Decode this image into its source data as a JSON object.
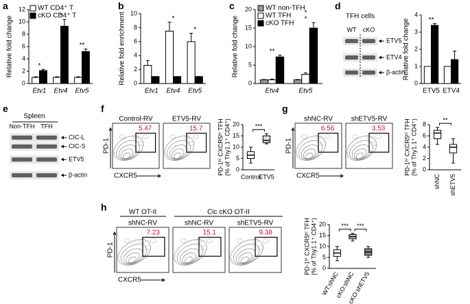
{
  "chart_data": [
    {
      "panel": "a",
      "type": "bar",
      "ylabel": "Relative fold change",
      "categories": [
        "Etv1",
        "Etv4",
        "Etv5"
      ],
      "series": [
        {
          "name": "WT CD4⁺ T",
          "color": "#ffffff",
          "values": [
            1,
            1,
            1
          ],
          "errors": [
            0.1,
            0.1,
            0.1
          ]
        },
        {
          "name": "cKO CD4⁺ T",
          "color": "#000000",
          "values": [
            2.1,
            9.3,
            5.2
          ],
          "errors": [
            0.2,
            1.1,
            0.4
          ]
        }
      ],
      "ylim": [
        0,
        12
      ],
      "yticks": [
        0,
        2,
        4,
        6,
        8,
        10,
        12
      ],
      "annotations": [
        [
          "*"
        ],
        [
          "*"
        ],
        [
          "**"
        ]
      ]
    },
    {
      "panel": "b",
      "type": "bar",
      "ylabel": "Relative fold enrichment",
      "categories": [
        "Etv1",
        "Etv4",
        "Etv5"
      ],
      "series": [
        {
          "color": "#ffffff",
          "values": [
            2.6,
            7.5,
            6
          ],
          "errors": [
            0.7,
            1.3,
            1.2
          ]
        },
        {
          "color": "#000000",
          "values": [
            1,
            1,
            1
          ],
          "errors": [
            0,
            0,
            0
          ]
        }
      ],
      "ylim": [
        0,
        10
      ],
      "yticks": [
        0,
        2,
        4,
        6,
        8,
        10
      ],
      "annotations": [
        [],
        [
          "*"
        ],
        [
          "*"
        ]
      ]
    },
    {
      "panel": "c",
      "type": "bar",
      "ylabel": "Relative fold change",
      "categories": [
        "Etv4",
        "Etv5"
      ],
      "series": [
        {
          "name": "WT non-TFH",
          "color": "#999999",
          "values": [
            1,
            1
          ],
          "errors": [
            0.1,
            0.1
          ]
        },
        {
          "name": "WT TFH",
          "color": "#ffffff",
          "values": [
            1,
            2.5
          ],
          "errors": [
            0.2,
            0.4
          ]
        },
        {
          "name": "cKO TFH",
          "color": "#000000",
          "values": [
            7.2,
            15
          ],
          "errors": [
            0.5,
            1.5
          ]
        }
      ],
      "ylim": [
        0,
        20
      ],
      "yticks": [
        0,
        5,
        10,
        15,
        20
      ],
      "annotations": [
        [
          "**"
        ],
        [
          "*",
          "*"
        ]
      ]
    },
    {
      "panel": "d",
      "type": "bar",
      "ylabel": "Relative fold change",
      "categories": [
        "ETV5",
        "ETV4"
      ],
      "series": [
        {
          "color": "#ffffff",
          "values": [
            1,
            1
          ],
          "errors": [
            0,
            0
          ]
        },
        {
          "color": "#000000",
          "values": [
            3.4,
            1.4
          ],
          "errors": [
            0.1,
            0.5
          ]
        }
      ],
      "ylim": [
        0,
        4
      ],
      "yticks": [
        0,
        1,
        2,
        3,
        4
      ],
      "annotations": [
        [
          "**"
        ],
        []
      ]
    },
    {
      "panel": "f",
      "type": "box",
      "ylabel": [
        "PD-1ʰⁱ CXCR5ʰⁱ TFH",
        "(% of Thy1.1⁺ CD4⁺)"
      ],
      "categories": [
        "Control",
        "ETV5"
      ],
      "boxes": [
        {
          "min": 3,
          "q1": 5,
          "median": 6.5,
          "q3": 8,
          "max": 10
        },
        {
          "min": 11.5,
          "q1": 12,
          "median": 13,
          "q3": 15,
          "max": 16
        }
      ],
      "colors": [
        "#ffffff",
        "#dddddd"
      ],
      "ylim": [
        0,
        20
      ],
      "yticks": [
        0,
        5,
        10,
        15,
        20
      ],
      "annotations": [
        "***"
      ]
    },
    {
      "panel": "g",
      "type": "box",
      "ylabel": [
        "PD-1ʰⁱ CXCR5ʰⁱ TFH",
        "(% of Thy1.1⁺ CD4⁺)"
      ],
      "categories": [
        "shNC",
        "shETV5"
      ],
      "boxes": [
        {
          "min": 4.5,
          "q1": 5.5,
          "median": 6.5,
          "q3": 7,
          "max": 7.5
        },
        {
          "min": 1.2,
          "q1": 3,
          "median": 4,
          "q3": 4.5,
          "max": 5.5
        }
      ],
      "colors": [
        "#ffffff",
        "#ffffff"
      ],
      "ylim": [
        0,
        8
      ],
      "yticks": [
        0,
        2,
        4,
        6,
        8
      ],
      "annotations": [
        "**"
      ]
    },
    {
      "panel": "h",
      "type": "box",
      "ylabel": [
        "PD-1ʰⁱ CXCR5ʰⁱ TFH",
        "(% of Thy1.1⁺ CD4⁺)"
      ],
      "categories": [
        "WT:shNC",
        "cKO:shNC",
        "cKO:shETV5"
      ],
      "boxes": [
        {
          "min": 3.5,
          "q1": 5.5,
          "median": 7,
          "q3": 8.5,
          "max": 10
        },
        {
          "min": 12.5,
          "q1": 13.5,
          "median": 14.5,
          "q3": 15.5,
          "max": 16
        },
        {
          "min": 5,
          "q1": 6,
          "median": 7.5,
          "q3": 9,
          "max": 10
        }
      ],
      "colors": [
        "#ffffff",
        "#cccccc",
        "#888888"
      ],
      "ylim": [
        0,
        20
      ],
      "yticks": [
        0,
        5,
        10,
        15,
        20
      ],
      "annotations": [
        "***",
        "***"
      ]
    }
  ],
  "blots": {
    "d": {
      "title": "TFH cells",
      "lanes": [
        "WT",
        "cKO"
      ],
      "bands": [
        "ETV5",
        "ETV4",
        "β-actin"
      ]
    },
    "e": {
      "panel": "e",
      "title": "Spleen",
      "lanes": [
        "Non-TFH",
        "TFH"
      ],
      "bands": [
        "CIC-L",
        "CIC-S",
        "ETV5",
        "β-actin"
      ]
    }
  },
  "flow": {
    "f": {
      "conditions": [
        "Control-RV",
        "ETV5-RV"
      ],
      "gates": [
        5.47,
        15.7
      ],
      "ylabel": "PD-1",
      "xlabel": "CXCR5"
    },
    "g": {
      "conditions": [
        "shNC-RV",
        "shETV5-RV"
      ],
      "gates": [
        6.56,
        3.53
      ],
      "ylabel": "PD-1",
      "xlabel": "CXCR5"
    },
    "h": {
      "groups": [
        "WT OT-II",
        "Cic cKO OT-II"
      ],
      "conditions": [
        "shNC-RV",
        "shNC-RV",
        "shETV5-RV"
      ],
      "gates": [
        7.23,
        15.1,
        9.38
      ],
      "ylabel": "PD-1",
      "xlabel": "CXCR5"
    }
  }
}
